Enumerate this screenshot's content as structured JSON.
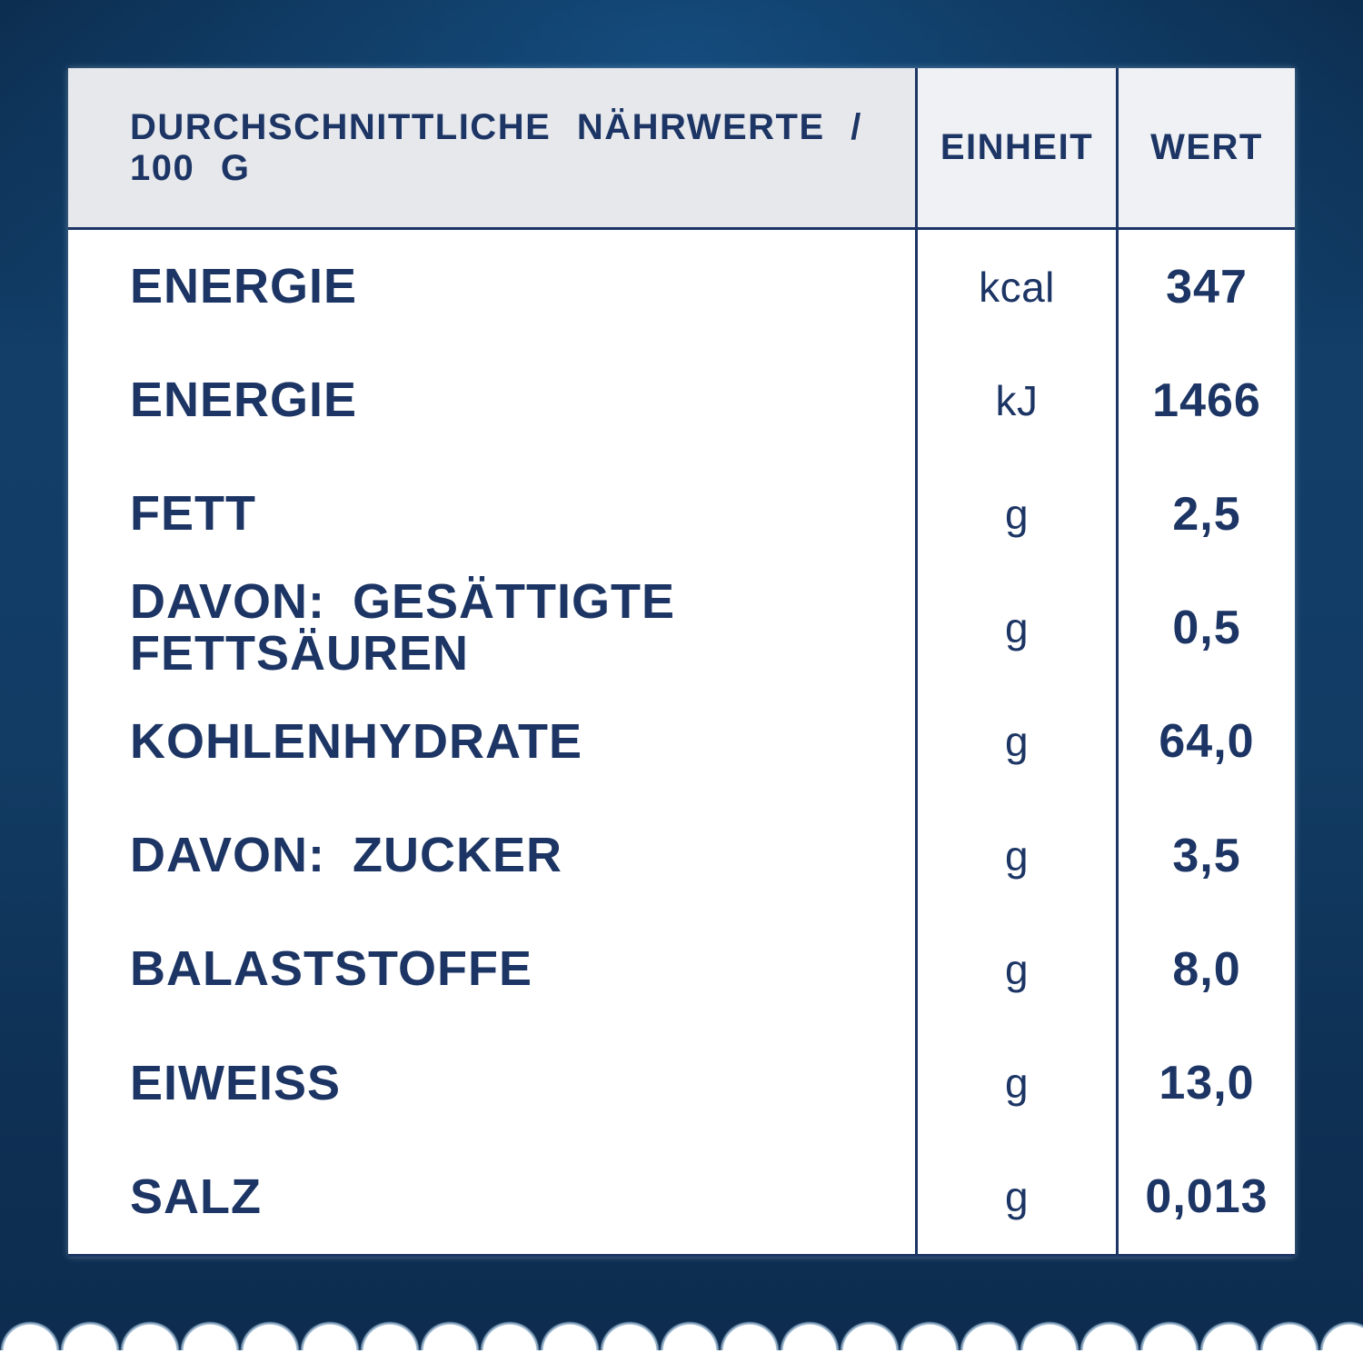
{
  "colors": {
    "navy": "#1c3564",
    "bg-top": "#0b2a4a",
    "bg-mid": "#123e68",
    "bg-bottom": "#0d2c4e",
    "card-bg": "#ffffff",
    "header-left-bg": "#e6e8ec",
    "header-right-bg": "#eff1f4",
    "wave-halo": "#a8c4dd"
  },
  "table": {
    "header": {
      "nutrients": "DURCHSCHNITTLICHE NÄHRWERTE / 100 G",
      "unit": "EINHEIT",
      "value": "WERT"
    },
    "rows": [
      {
        "label": "ENERGIE",
        "unit": "kcal",
        "value": "347"
      },
      {
        "label": "ENERGIE",
        "unit": "kJ",
        "value": "1466"
      },
      {
        "label": "FETT",
        "unit": "g",
        "value": "2,5"
      },
      {
        "label": "DAVON: GESÄTTIGTE FETTSÄUREN",
        "unit": "g",
        "value": "0,5"
      },
      {
        "label": "KOHLENHYDRATE",
        "unit": "g",
        "value": "64,0"
      },
      {
        "label": "DAVON: ZUCKER",
        "unit": "g",
        "value": "3,5"
      },
      {
        "label": "BALASTSTOFFE",
        "unit": "g",
        "value": "8,0"
      },
      {
        "label": "EIWEISS",
        "unit": "g",
        "value": "13,0"
      },
      {
        "label": "SALZ",
        "unit": "g",
        "value": "0,013"
      }
    ]
  }
}
